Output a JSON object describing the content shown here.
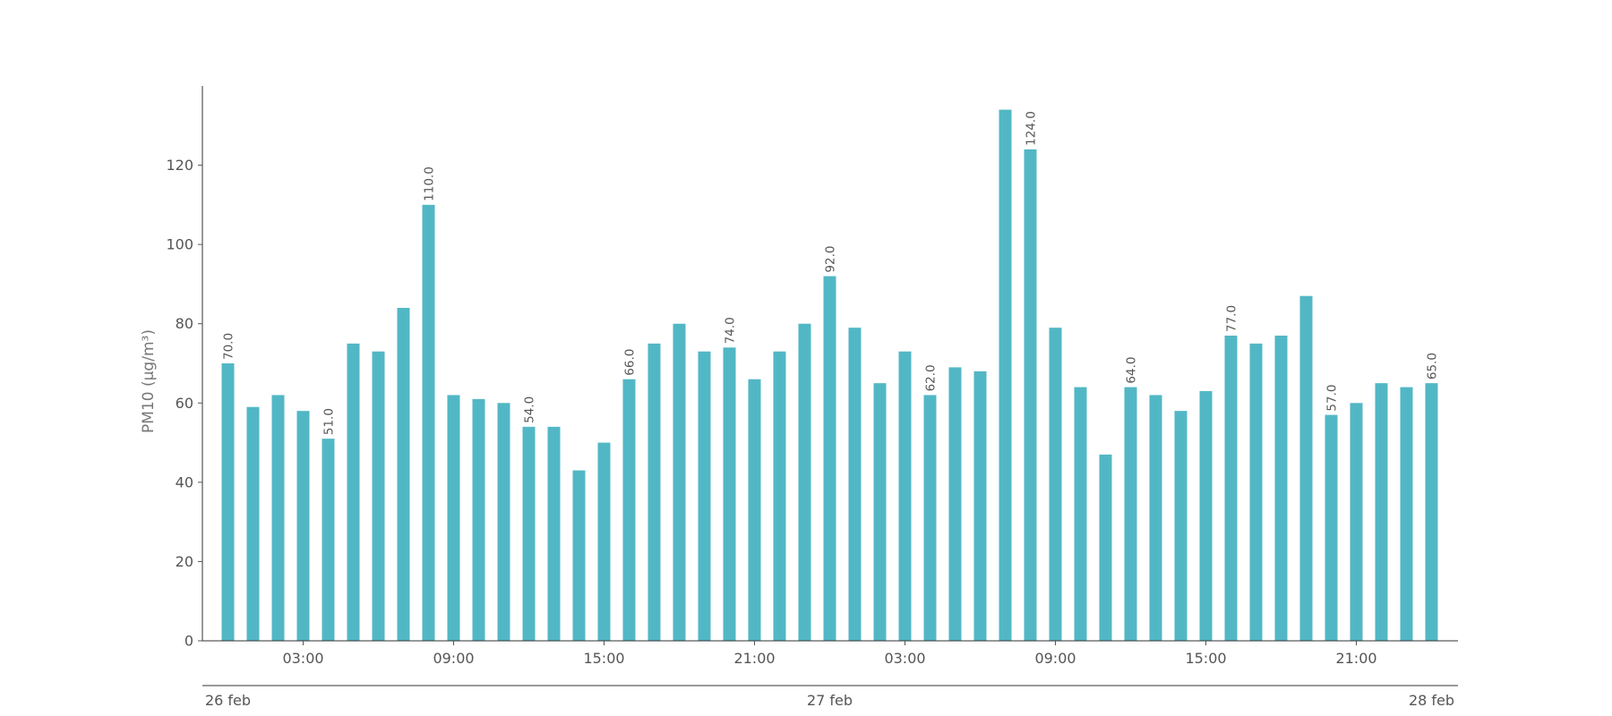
{
  "chart_data": {
    "type": "bar",
    "ylabel": "PM10 (μg/m³)",
    "ylim": [
      0,
      140
    ],
    "y_ticks": [
      0,
      20,
      40,
      60,
      80,
      100,
      120
    ],
    "bar_color": "#52b7c5",
    "x": [
      "2023-02-26 00:00",
      "2023-02-26 01:00",
      "2023-02-26 02:00",
      "2023-02-26 03:00",
      "2023-02-26 04:00",
      "2023-02-26 05:00",
      "2023-02-26 06:00",
      "2023-02-26 07:00",
      "2023-02-26 08:00",
      "2023-02-26 09:00",
      "2023-02-26 10:00",
      "2023-02-26 11:00",
      "2023-02-26 12:00",
      "2023-02-26 13:00",
      "2023-02-26 14:00",
      "2023-02-26 15:00",
      "2023-02-26 16:00",
      "2023-02-26 17:00",
      "2023-02-26 18:00",
      "2023-02-26 19:00",
      "2023-02-26 20:00",
      "2023-02-26 21:00",
      "2023-02-26 22:00",
      "2023-02-26 23:00",
      "2023-02-27 00:00",
      "2023-02-27 01:00",
      "2023-02-27 02:00",
      "2023-02-27 03:00",
      "2023-02-27 04:00",
      "2023-02-27 05:00",
      "2023-02-27 06:00",
      "2023-02-27 07:00",
      "2023-02-27 08:00",
      "2023-02-27 09:00",
      "2023-02-27 10:00",
      "2023-02-27 11:00",
      "2023-02-27 12:00",
      "2023-02-27 13:00",
      "2023-02-27 14:00",
      "2023-02-27 15:00",
      "2023-02-27 16:00",
      "2023-02-27 17:00",
      "2023-02-27 18:00",
      "2023-02-27 19:00",
      "2023-02-27 20:00",
      "2023-02-27 21:00",
      "2023-02-27 22:00",
      "2023-02-27 23:00",
      "2023-02-28 00:00"
    ],
    "values": [
      70,
      59,
      62,
      58,
      51,
      75,
      73,
      84,
      110,
      62,
      61,
      60,
      54,
      54,
      43,
      50,
      66,
      75,
      80,
      73,
      74,
      66,
      73,
      80,
      92,
      79,
      65,
      73,
      62,
      69,
      68,
      134,
      124,
      79,
      64,
      47,
      64,
      62,
      58,
      63,
      77,
      75,
      77,
      87,
      57,
      60,
      65,
      64,
      65
    ],
    "value_labels": [
      {
        "index": 0,
        "text": "70.0"
      },
      {
        "index": 4,
        "text": "51.0"
      },
      {
        "index": 8,
        "text": "110.0"
      },
      {
        "index": 12,
        "text": "54.0"
      },
      {
        "index": 16,
        "text": "66.0"
      },
      {
        "index": 20,
        "text": "74.0"
      },
      {
        "index": 24,
        "text": "92.0"
      },
      {
        "index": 28,
        "text": "62.0"
      },
      {
        "index": 32,
        "text": "124.0"
      },
      {
        "index": 36,
        "text": "64.0"
      },
      {
        "index": 40,
        "text": "77.0"
      },
      {
        "index": 44,
        "text": "57.0"
      },
      {
        "index": 48,
        "text": "65.0"
      }
    ],
    "hour_ticks": [
      {
        "index": 3,
        "label": "03:00"
      },
      {
        "index": 9,
        "label": "09:00"
      },
      {
        "index": 15,
        "label": "15:00"
      },
      {
        "index": 21,
        "label": "21:00"
      },
      {
        "index": 27,
        "label": "03:00"
      },
      {
        "index": 33,
        "label": "09:00"
      },
      {
        "index": 39,
        "label": "15:00"
      },
      {
        "index": 45,
        "label": "21:00"
      }
    ],
    "day_ticks": [
      {
        "index": 0,
        "label": "26 feb"
      },
      {
        "index": 24,
        "label": "27 feb"
      },
      {
        "index": 48,
        "label": "28 feb"
      }
    ]
  }
}
